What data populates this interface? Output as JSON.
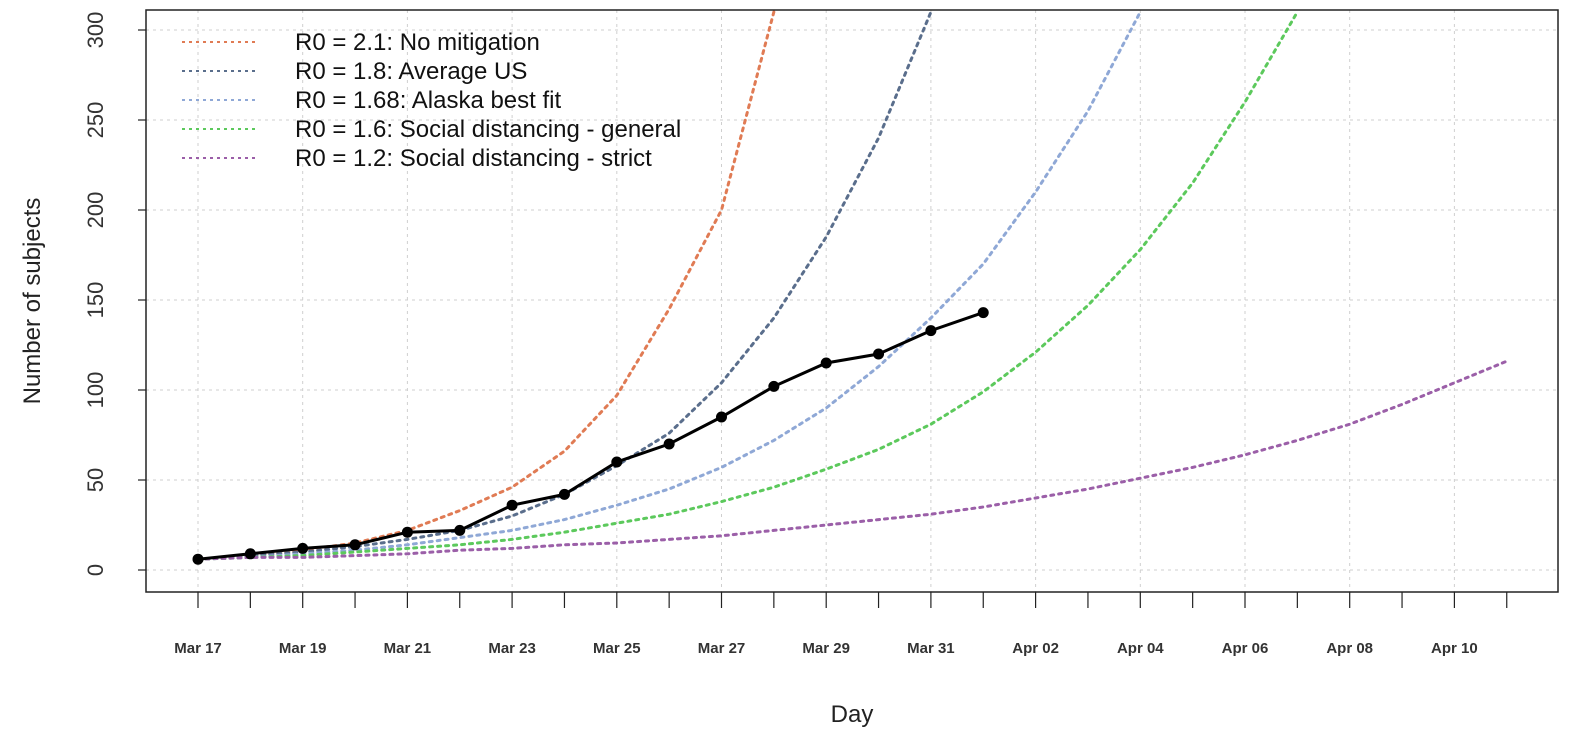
{
  "chart_data": {
    "type": "line",
    "title": "",
    "xlabel": "Day",
    "ylabel": "Number of subjects",
    "ylim": [
      0,
      300
    ],
    "y_ticks": [
      0,
      50,
      100,
      150,
      200,
      250,
      300
    ],
    "grid": true,
    "legend_position": "top-left",
    "x_tick_labels": [
      {
        "day": 0,
        "label": "Mar 17"
      },
      {
        "day": 2,
        "label": "Mar 19"
      },
      {
        "day": 4,
        "label": "Mar 21"
      },
      {
        "day": 6,
        "label": "Mar 23"
      },
      {
        "day": 8,
        "label": "Mar 25"
      },
      {
        "day": 10,
        "label": "Mar 27"
      },
      {
        "day": 12,
        "label": "Mar 29"
      },
      {
        "day": 14,
        "label": "Mar 31"
      },
      {
        "day": 16,
        "label": "Apr 02"
      },
      {
        "day": 18,
        "label": "Apr 04"
      },
      {
        "day": 20,
        "label": "Apr 06"
      },
      {
        "day": 22,
        "label": "Apr 08"
      },
      {
        "day": 24,
        "label": "Apr 10"
      }
    ],
    "x_tick_marks": [
      0,
      1,
      2,
      3,
      4,
      5,
      6,
      7,
      8,
      9,
      10,
      11,
      12,
      13,
      14,
      15,
      16,
      17,
      18,
      19,
      20,
      21,
      22,
      23,
      24,
      25
    ],
    "observed": {
      "x": [
        "Mar 17",
        "Mar 18",
        "Mar 19",
        "Mar 20",
        "Mar 21",
        "Mar 22",
        "Mar 23",
        "Mar 24",
        "Mar 25",
        "Mar 26",
        "Mar 27",
        "Mar 28",
        "Mar 29",
        "Mar 30",
        "Mar 31",
        "Apr 01"
      ],
      "values": [
        6,
        9,
        12,
        14,
        21,
        22,
        36,
        42,
        60,
        70,
        85,
        102,
        115,
        120,
        133,
        143
      ],
      "color": "#000000"
    },
    "series": [
      {
        "name": "R0 = 2.1: No mitigation",
        "color": "#E07B54",
        "x": [
          "Mar 17",
          "Mar 18",
          "Mar 19",
          "Mar 20",
          "Mar 21",
          "Mar 22",
          "Mar 23",
          "Mar 24",
          "Mar 25",
          "Mar 26",
          "Mar 27",
          "Mar 28"
        ],
        "values": [
          6,
          8,
          11,
          15,
          22,
          33,
          46,
          66,
          97,
          145,
          200,
          310
        ]
      },
      {
        "name": "R0 = 1.8: Average US",
        "color": "#5A6E8C",
        "x": [
          "Mar 17",
          "Mar 18",
          "Mar 19",
          "Mar 20",
          "Mar 21",
          "Mar 22",
          "Mar 23",
          "Mar 24",
          "Mar 25",
          "Mar 26",
          "Mar 27",
          "Mar 28",
          "Mar 29",
          "Mar 30",
          "Mar 31"
        ],
        "values": [
          6,
          8,
          10,
          13,
          17,
          22,
          30,
          42,
          58,
          76,
          104,
          140,
          185,
          240,
          310
        ]
      },
      {
        "name": "R0 = 1.68: Alaska best fit",
        "color": "#8FA8D6",
        "x": [
          "Mar 17",
          "Mar 18",
          "Mar 19",
          "Mar 20",
          "Mar 21",
          "Mar 22",
          "Mar 23",
          "Mar 24",
          "Mar 25",
          "Mar 26",
          "Mar 27",
          "Mar 28",
          "Mar 29",
          "Mar 30",
          "Mar 31",
          "Apr 01",
          "Apr 02",
          "Apr 03",
          "Apr 04"
        ],
        "values": [
          6,
          7,
          9,
          11,
          14,
          18,
          22,
          28,
          36,
          45,
          57,
          72,
          90,
          113,
          140,
          170,
          210,
          255,
          310
        ]
      },
      {
        "name": "R0 = 1.6: Social distancing - general",
        "color": "#5CC95C",
        "x": [
          "Mar 17",
          "Mar 18",
          "Mar 19",
          "Mar 20",
          "Mar 21",
          "Mar 22",
          "Mar 23",
          "Mar 24",
          "Mar 25",
          "Mar 26",
          "Mar 27",
          "Mar 28",
          "Mar 29",
          "Mar 30",
          "Mar 31",
          "Apr 01",
          "Apr 02",
          "Apr 03",
          "Apr 04",
          "Apr 05",
          "Apr 06",
          "Apr 07"
        ],
        "values": [
          6,
          7,
          8,
          10,
          12,
          14,
          17,
          21,
          26,
          31,
          38,
          46,
          56,
          67,
          81,
          99,
          121,
          147,
          178,
          215,
          260,
          310
        ]
      },
      {
        "name": "R0 = 1.2: Social distancing - strict",
        "color": "#9B5FA8",
        "x": [
          "Mar 17",
          "Mar 18",
          "Mar 19",
          "Mar 20",
          "Mar 21",
          "Mar 22",
          "Mar 23",
          "Mar 24",
          "Mar 25",
          "Mar 26",
          "Mar 27",
          "Mar 28",
          "Mar 29",
          "Mar 30",
          "Mar 31",
          "Apr 01",
          "Apr 02",
          "Apr 03",
          "Apr 04",
          "Apr 05",
          "Apr 06",
          "Apr 07",
          "Apr 08",
          "Apr 09",
          "Apr 10",
          "Apr 11"
        ],
        "values": [
          6,
          7,
          7,
          8,
          9,
          11,
          12,
          14,
          15,
          17,
          19,
          22,
          25,
          28,
          31,
          35,
          40,
          45,
          51,
          57,
          64,
          72,
          81,
          92,
          104,
          116
        ]
      }
    ]
  }
}
